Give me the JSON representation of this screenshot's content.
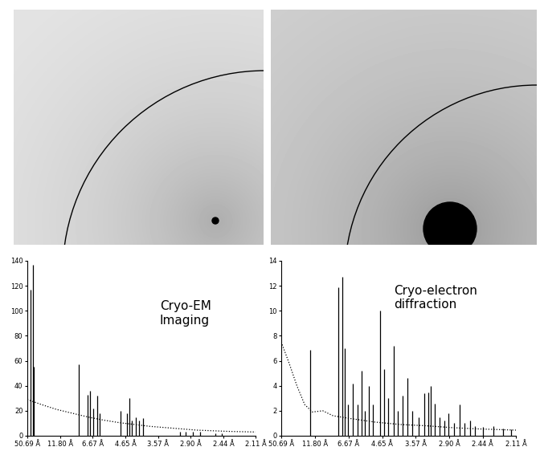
{
  "chart_data": [
    {
      "type": "line",
      "annotation": "Cryo-EM\nImaging",
      "grid": false,
      "xlim": [
        0.0197,
        0.4739
      ],
      "xticks": [
        {
          "value": 0.0197,
          "label": "50.69 Å"
        },
        {
          "value": 0.0847,
          "label": "11.80 Å"
        },
        {
          "value": 0.1499,
          "label": "6.67 Å"
        },
        {
          "value": 0.2151,
          "label": "4.65 Å"
        },
        {
          "value": 0.2801,
          "label": "3.57 Å"
        },
        {
          "value": 0.3448,
          "label": "2.90 Å"
        },
        {
          "value": 0.4098,
          "label": "2.44 Å"
        },
        {
          "value": 0.4739,
          "label": "2.11 Å"
        }
      ],
      "ylim": [
        0,
        140
      ],
      "yticks": [
        0,
        20,
        40,
        60,
        80,
        100,
        120,
        140
      ],
      "series": [
        {
          "type": "stem",
          "color": "#000000",
          "x": [
            0.0259,
            0.0305,
            0.0329,
            0.1219,
            0.1389,
            0.1451,
            0.1513,
            0.159,
            0.1637,
            0.2055,
            0.2178,
            0.2225,
            0.2271,
            0.2349,
            0.2426,
            0.2504,
            0.3231,
            0.334,
            0.3494,
            0.3634,
            0.394,
            0.407
          ],
          "values": [
            117,
            137,
            55,
            57,
            33,
            36,
            22,
            32,
            18,
            20,
            18,
            30,
            12,
            15,
            12,
            14,
            3,
            3,
            3,
            3,
            2,
            2
          ]
        },
        {
          "type": "line",
          "color": "#000000",
          "line_style": "dotted",
          "x": [
            0.0197,
            0.0476,
            0.0785,
            0.1095,
            0.1405,
            0.1715,
            0.2025,
            0.2334,
            0.2644,
            0.2954,
            0.3263,
            0.3573,
            0.3883,
            0.42,
            0.4739
          ],
          "values": [
            29,
            25,
            21,
            18,
            15,
            12.5,
            10.5,
            9,
            7.5,
            6.5,
            5.5,
            4.5,
            4,
            3.5,
            3
          ]
        }
      ]
    },
    {
      "type": "line",
      "annotation": "Cryo-electron\ndiffraction",
      "grid": false,
      "xlim": [
        0.0197,
        0.4739
      ],
      "xticks": [
        {
          "value": 0.0197,
          "label": "50.69 Å"
        },
        {
          "value": 0.0847,
          "label": "11.80 Å"
        },
        {
          "value": 0.1499,
          "label": "6.67 Å"
        },
        {
          "value": 0.2151,
          "label": "4.65 Å"
        },
        {
          "value": 0.2801,
          "label": "3.57 Å"
        },
        {
          "value": 0.3448,
          "label": "2.90 Å"
        },
        {
          "value": 0.4098,
          "label": "2.44 Å"
        },
        {
          "value": 0.4739,
          "label": "2.11 Å"
        }
      ],
      "ylim": [
        0,
        14
      ],
      "yticks": [
        0,
        2,
        4,
        6,
        8,
        10,
        12,
        14
      ],
      "series": [
        {
          "type": "stem",
          "color": "#000000",
          "x": [
            0.0754,
            0.1296,
            0.1373,
            0.142,
            0.1482,
            0.1575,
            0.1668,
            0.1745,
            0.1822,
            0.19,
            0.1977,
            0.2116,
            0.2194,
            0.2271,
            0.238,
            0.2457,
            0.255,
            0.2643,
            0.2736,
            0.286,
            0.2968,
            0.3045,
            0.3092,
            0.3169,
            0.3262,
            0.3355,
            0.3432,
            0.354,
            0.3649,
            0.3742,
            0.385,
            0.3943,
            0.4098,
            0.43,
            0.4485,
            0.464
          ],
          "values": [
            6.9,
            11.9,
            12.7,
            7,
            2.5,
            4.2,
            2.5,
            5.2,
            2,
            4,
            2.5,
            10,
            5.3,
            3,
            7.2,
            2,
            3.2,
            4.6,
            2,
            1.5,
            3.4,
            3.5,
            4,
            2.6,
            1.5,
            1.2,
            1.8,
            1,
            2.5,
            1,
            1.2,
            0.8,
            0.7,
            0.8,
            0.6,
            0.5
          ]
        },
        {
          "type": "line",
          "color": "#000000",
          "line_style": "dotted",
          "x": [
            0.0197,
            0.035,
            0.05,
            0.065,
            0.08,
            0.1,
            0.12,
            0.15,
            0.2,
            0.25,
            0.3,
            0.35,
            0.4,
            0.4739
          ],
          "values": [
            7.5,
            5.8,
            4,
            2.5,
            1.9,
            2.0,
            1.6,
            1.4,
            1.1,
            0.9,
            0.8,
            0.65,
            0.55,
            0.45
          ]
        }
      ]
    }
  ]
}
